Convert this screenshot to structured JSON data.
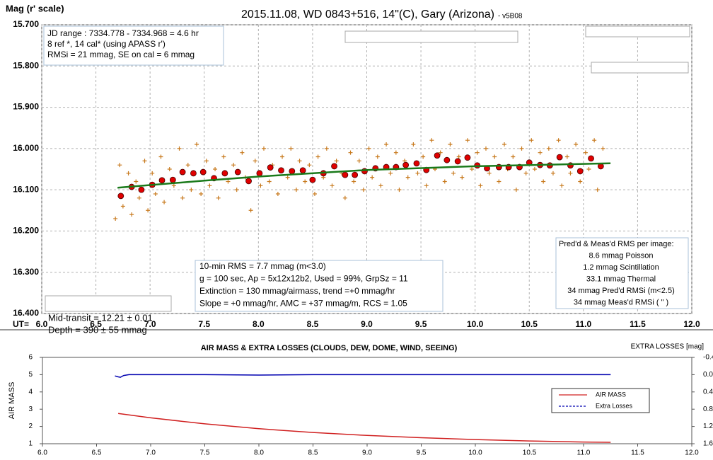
{
  "chart_data": [
    {
      "type": "scatter",
      "title": "2015.11.08, WD 0843+516, 14\"(C), Gary (Arizona)",
      "subtitle": "- v5B08",
      "y_label": "Mag (r' scale)",
      "x_label": "UT=",
      "xlim": [
        6.0,
        12.0
      ],
      "xticks": [
        {
          "value": 6,
          "label": "6.0"
        },
        6.5,
        {
          "value": 7,
          "label": "7.0"
        },
        7.5,
        {
          "value": 8,
          "label": "8.0"
        },
        8.5,
        {
          "value": 9,
          "label": "9.0"
        },
        9.5,
        {
          "value": 10,
          "label": "10.0"
        },
        10.5,
        {
          "value": 11,
          "label": "11.0"
        },
        11.5,
        {
          "value": 12,
          "label": "12.0"
        }
      ],
      "ylim": [
        15.7,
        16.4
      ],
      "y_inverted": true,
      "yticks": [
        {
          "value": 15.7,
          "label": "15.700"
        },
        {
          "value": 15.8,
          "label": "15.800"
        },
        {
          "value": 15.9,
          "label": "15.900"
        },
        {
          "value": 16.0,
          "label": "16.000"
        },
        {
          "value": 16.1,
          "label": "16.100"
        },
        {
          "value": 16.2,
          "label": "16.200"
        },
        {
          "value": 16.3,
          "label": "16.300"
        },
        {
          "value": 16.4,
          "label": "16.400"
        }
      ],
      "grid": true,
      "series": [
        {
          "marker": "plus",
          "color": "#c87a1e",
          "x": [
            6.68,
            6.72,
            6.75,
            6.8,
            6.83,
            6.87,
            6.9,
            6.95,
            6.98,
            7.02,
            7.05,
            7.1,
            7.13,
            7.18,
            7.22,
            7.27,
            7.3,
            7.35,
            7.38,
            7.43,
            7.47,
            7.52,
            7.55,
            7.6,
            7.63,
            7.68,
            7.72,
            7.77,
            7.8,
            7.85,
            7.88,
            7.93,
            7.97,
            8.02,
            8.05,
            8.1,
            8.13,
            8.18,
            8.22,
            8.27,
            8.3,
            8.35,
            8.38,
            8.43,
            8.47,
            8.52,
            8.55,
            8.6,
            8.63,
            8.68,
            8.72,
            8.77,
            8.8,
            8.85,
            8.88,
            8.93,
            8.97,
            9.02,
            9.05,
            9.1,
            9.13,
            9.18,
            9.22,
            9.27,
            9.3,
            9.35,
            9.38,
            9.43,
            9.47,
            9.52,
            9.55,
            9.6,
            9.63,
            9.68,
            9.72,
            9.77,
            9.8,
            9.85,
            9.88,
            9.93,
            9.97,
            10.02,
            10.05,
            10.1,
            10.13,
            10.18,
            10.22,
            10.27,
            10.3,
            10.35,
            10.38,
            10.43,
            10.47,
            10.52,
            10.55,
            10.6,
            10.63,
            10.68,
            10.72,
            10.77,
            10.8,
            10.85,
            10.88,
            10.93,
            10.97,
            11.02,
            11.05,
            11.1,
            11.13,
            11.18
          ],
          "values": [
            16.17,
            16.04,
            16.14,
            16.06,
            16.16,
            16.08,
            16.12,
            16.03,
            16.15,
            16.06,
            16.11,
            16.02,
            16.13,
            16.05,
            16.09,
            16.0,
            16.12,
            16.04,
            16.1,
            15.99,
            16.11,
            16.03,
            16.09,
            16.05,
            16.12,
            16.02,
            16.08,
            16.04,
            16.1,
            16.01,
            16.07,
            16.15,
            16.03,
            16.09,
            16.0,
            16.08,
            16.04,
            16.11,
            16.02,
            16.07,
            16.0,
            16.1,
            16.03,
            16.08,
            16.04,
            16.11,
            16.02,
            16.07,
            16.0,
            16.09,
            16.03,
            16.06,
            16.12,
            16.01,
            16.08,
            16.03,
            16.1,
            16.0,
            16.07,
            16.02,
            16.09,
            15.99,
            16.06,
            16.01,
            16.1,
            16.03,
            16.07,
            15.99,
            16.06,
            16.02,
            16.09,
            15.98,
            16.05,
            16.01,
            16.08,
            15.99,
            16.06,
            16.02,
            16.07,
            15.98,
            16.05,
            16.01,
            16.09,
            16.0,
            16.06,
            16.02,
            16.08,
            15.99,
            16.05,
            16.02,
            16.1,
            16.0,
            16.06,
            15.98,
            16.05,
            16.01,
            16.08,
            16.0,
            16.06,
            15.98,
            16.09,
            16.02,
            16.06,
            15.99,
            16.08,
            16.01,
            16.05,
            15.98,
            16.1,
            16.0
          ]
        },
        {
          "marker": "circle",
          "color": "#e00000",
          "x": [
            6.73,
            6.83,
            6.92,
            7.02,
            7.11,
            7.21,
            7.3,
            7.4,
            7.49,
            7.59,
            7.69,
            7.81,
            7.91,
            8.01,
            8.11,
            8.21,
            8.31,
            8.41,
            8.5,
            8.6,
            8.7,
            8.8,
            8.89,
            8.98,
            9.08,
            9.18,
            9.27,
            9.36,
            9.46,
            9.55,
            9.65,
            9.74,
            9.84,
            9.93,
            10.02,
            10.11,
            10.22,
            10.31,
            10.41,
            10.5,
            10.6,
            10.69,
            10.78,
            10.88,
            10.97,
            11.07,
            11.16
          ],
          "values": [
            16.115,
            16.093,
            16.1,
            16.088,
            16.077,
            16.076,
            16.057,
            16.06,
            16.057,
            16.072,
            16.06,
            16.057,
            16.079,
            16.06,
            16.046,
            16.053,
            16.055,
            16.053,
            16.076,
            16.06,
            16.043,
            16.064,
            16.064,
            16.055,
            16.048,
            16.045,
            16.045,
            16.04,
            16.036,
            16.052,
            16.017,
            16.028,
            16.031,
            16.022,
            16.041,
            16.048,
            16.045,
            16.045,
            16.045,
            16.034,
            16.04,
            16.041,
            16.021,
            16.041,
            16.055,
            16.024,
            16.043
          ]
        },
        {
          "marker": "line",
          "color": "#1a7a1a",
          "x": [
            6.7,
            7.5,
            8.0,
            9.0,
            10.0,
            11.25
          ],
          "values": [
            16.095,
            16.078,
            16.068,
            16.052,
            16.043,
            16.036
          ]
        }
      ],
      "info_box": [
        "JD range : 7334.778 - 7334.968 = 4.6 hr",
        "  8 ref *, 14 cal* (using APASS r')",
        "RMSi = 21 mmag, SE on cal = 6 mmag"
      ],
      "stats_box": [
        "10-min RMS = 7.7 mmag (m<3.0)",
        " g = 100 sec, Ap = 5x12x12b2, Used = 99%, GrpSz = 11",
        "Extinction = 130 mmag/airmass, trend =+0 mmag/hr",
        " Slope = +0 mmag/hr, AMC = +37 mmag/m, RCS = 1.05"
      ],
      "rms_box": [
        "Pred'd & Meas'd RMS per image:",
        "8.6 mmag Poisson",
        "1.2 mmag Scintillation",
        "33.1 mmag Thermal",
        "34 mmag Pred'd  RMSi (m<2.5)",
        "34 mmag Meas'd RMSi (     \"     )"
      ],
      "transit": [
        "Mid-transit = 12.21 ± 0.01",
        "Depth = 390 ± 55 mmag"
      ]
    },
    {
      "type": "line",
      "title": "AIR MASS & EXTRA LOSSES (CLOUDS, DEW, DOME, WIND, SEEING)",
      "y_label": "AIR MASS",
      "y2_label": "EXTRA LOSSES [mag]",
      "xlim": [
        6.0,
        12.0
      ],
      "xticks": [
        {
          "value": 6,
          "label": "6.0"
        },
        6.5,
        {
          "value": 7,
          "label": "7.0"
        },
        7.5,
        {
          "value": 8,
          "label": "8.0"
        },
        8.5,
        {
          "value": 9,
          "label": "9.0"
        },
        9.5,
        {
          "value": 10,
          "label": "10.0"
        },
        10.5,
        {
          "value": 11,
          "label": "11.0"
        },
        11.5,
        {
          "value": 12,
          "label": "12.0"
        }
      ],
      "ylim": [
        1,
        6
      ],
      "yticks": [
        1,
        2,
        3,
        4,
        5,
        6
      ],
      "y2lim": [
        -0.4,
        1.6
      ],
      "y2_inverted": true,
      "y2ticks": [
        -0.4,
        {
          "value": 0,
          "label": "0.0"
        },
        0.4,
        0.8,
        1.2,
        1.6
      ],
      "grid": false,
      "legend": "right",
      "series": [
        {
          "name": "AIR MASS",
          "color": "#d02020",
          "x": [
            6.7,
            7.0,
            7.5,
            8.0,
            8.5,
            9.0,
            9.5,
            10.0,
            10.5,
            11.0,
            11.25
          ],
          "values": [
            2.75,
            2.5,
            2.15,
            1.87,
            1.65,
            1.48,
            1.35,
            1.24,
            1.16,
            1.1,
            1.08
          ]
        },
        {
          "name": "Extra Losses",
          "color": "#0000b0",
          "axis": "y2",
          "x": [
            6.67,
            6.7,
            6.72,
            6.75,
            6.8,
            7.0,
            7.5,
            8.0,
            8.5,
            9.0,
            9.5,
            10.0,
            10.5,
            11.0,
            11.25
          ],
          "values": [
            0.03,
            0.05,
            0.06,
            0.02,
            0.0,
            0.0,
            0.0,
            0.01,
            0.0,
            0.0,
            0.0,
            0.0,
            0.0,
            0.0,
            0.0
          ]
        }
      ]
    }
  ]
}
